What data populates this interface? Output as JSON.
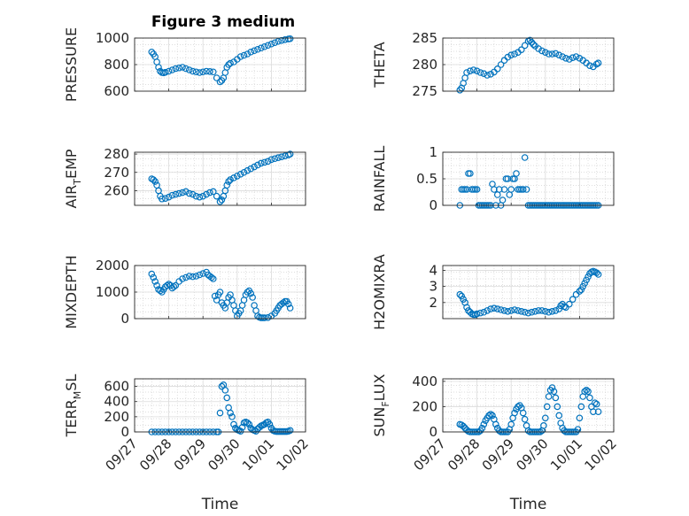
{
  "figure": {
    "title": "Figure 3 medium",
    "xlabel": "Time",
    "marker_color": "#0072BD",
    "x_ticks": [
      "09/27",
      "09/28",
      "09/29",
      "09/30",
      "10/01",
      "10/02"
    ]
  },
  "chart_data": [
    {
      "type": "scatter",
      "ylabel": "PRESSURE",
      "yticks": [
        "600",
        "800",
        "1000"
      ],
      "ylim": [
        600,
        1000
      ],
      "xlim": [
        0,
        5
      ],
      "grid": true,
      "x": [
        0.5,
        0.55,
        0.6,
        0.65,
        0.7,
        0.75,
        0.8,
        0.85,
        0.9,
        1.0,
        1.1,
        1.2,
        1.3,
        1.4,
        1.5,
        1.6,
        1.7,
        1.8,
        1.9,
        2.0,
        2.1,
        2.2,
        2.3,
        2.4,
        2.5,
        2.55,
        2.6,
        2.65,
        2.7,
        2.75,
        2.8,
        2.9,
        3.0,
        3.1,
        3.2,
        3.3,
        3.4,
        3.5,
        3.6,
        3.7,
        3.8,
        3.9,
        4.0,
        4.1,
        4.2,
        4.3,
        4.4,
        4.5,
        4.55
      ],
      "y": [
        895,
        880,
        860,
        820,
        780,
        750,
        740,
        738,
        742,
        750,
        760,
        770,
        775,
        780,
        770,
        760,
        750,
        745,
        740,
        745,
        750,
        748,
        745,
        700,
        670,
        680,
        700,
        740,
        780,
        800,
        810,
        820,
        840,
        860,
        870,
        880,
        895,
        905,
        915,
        925,
        935,
        945,
        955,
        965,
        975,
        982,
        988,
        993,
        995
      ]
    },
    {
      "type": "scatter",
      "ylabel": "THETA",
      "yticks": [
        "275",
        "280",
        "285"
      ],
      "ylim": [
        275,
        285
      ],
      "xlim": [
        0,
        5
      ],
      "grid": true,
      "x": [
        0.5,
        0.55,
        0.6,
        0.65,
        0.7,
        0.8,
        0.9,
        1.0,
        1.1,
        1.2,
        1.3,
        1.4,
        1.5,
        1.6,
        1.7,
        1.8,
        1.9,
        2.0,
        2.1,
        2.2,
        2.3,
        2.4,
        2.5,
        2.55,
        2.6,
        2.65,
        2.7,
        2.8,
        2.9,
        3.0,
        3.1,
        3.2,
        3.3,
        3.4,
        3.5,
        3.6,
        3.7,
        3.8,
        3.9,
        4.0,
        4.1,
        4.2,
        4.3,
        4.4,
        4.5,
        4.55
      ],
      "y": [
        275.2,
        275.6,
        276.5,
        277.5,
        278.5,
        278.8,
        279.0,
        278.8,
        278.5,
        278.3,
        278.0,
        278.2,
        278.6,
        279.2,
        280.0,
        280.8,
        281.4,
        281.8,
        282.0,
        282.3,
        282.8,
        283.6,
        284.4,
        284.6,
        284.2,
        283.8,
        283.5,
        283.0,
        282.6,
        282.3,
        282.0,
        282.0,
        282.1,
        281.8,
        281.5,
        281.2,
        281.0,
        281.3,
        281.5,
        281.2,
        280.8,
        280.3,
        279.8,
        279.6,
        280.1,
        280.3
      ]
    },
    {
      "type": "scatter",
      "ylabel": "AIR_TEMP",
      "ylabel_main": "AIR",
      "ylabel_sub": "T",
      "ylabel_rest": "EMP",
      "yticks": [
        "260",
        "270",
        "280"
      ],
      "ylim": [
        252,
        281
      ],
      "xlim": [
        0,
        5
      ],
      "grid": true,
      "x": [
        0.5,
        0.55,
        0.6,
        0.65,
        0.7,
        0.75,
        0.8,
        0.9,
        1.0,
        1.1,
        1.2,
        1.3,
        1.4,
        1.5,
        1.6,
        1.7,
        1.8,
        1.9,
        2.0,
        2.1,
        2.2,
        2.3,
        2.4,
        2.5,
        2.55,
        2.6,
        2.65,
        2.7,
        2.75,
        2.8,
        2.9,
        3.0,
        3.1,
        3.2,
        3.3,
        3.4,
        3.5,
        3.6,
        3.7,
        3.8,
        3.9,
        4.0,
        4.1,
        4.2,
        4.3,
        4.4,
        4.5,
        4.55
      ],
      "y": [
        266.5,
        266,
        265,
        263,
        260,
        257,
        255.5,
        255.8,
        256.5,
        257.5,
        258,
        258.5,
        259,
        259.5,
        258.5,
        258,
        257,
        256.5,
        257,
        258,
        259,
        259.5,
        257,
        254,
        255,
        257,
        260,
        263,
        265,
        266,
        267,
        268,
        269,
        270,
        271,
        272,
        273,
        274,
        275,
        275.5,
        276,
        277,
        277.5,
        278,
        278.5,
        279,
        279.5,
        280
      ]
    },
    {
      "type": "scatter",
      "ylabel": "RAINFALL",
      "yticks": [
        "0",
        "0.5",
        "1"
      ],
      "ylim": [
        0,
        1
      ],
      "xlim": [
        0,
        5
      ],
      "grid": true,
      "x": [
        0.5,
        0.55,
        0.6,
        0.65,
        0.7,
        0.75,
        0.8,
        0.85,
        0.9,
        0.95,
        1.0,
        1.05,
        1.1,
        1.15,
        1.2,
        1.25,
        1.3,
        1.35,
        1.4,
        1.45,
        1.5,
        1.55,
        1.6,
        1.65,
        1.7,
        1.75,
        1.8,
        1.85,
        1.9,
        1.95,
        2.0,
        2.05,
        2.1,
        2.15,
        2.2,
        2.25,
        2.3,
        2.35,
        2.4,
        2.45,
        2.5,
        2.55,
        2.6,
        2.65,
        2.7,
        2.75,
        2.8,
        2.85,
        2.9,
        2.95,
        3.0,
        3.05,
        3.1,
        3.15,
        3.2,
        3.25,
        3.3,
        3.35,
        3.4,
        3.45,
        3.5,
        3.55,
        3.6,
        3.65,
        3.7,
        3.75,
        3.8,
        3.85,
        3.9,
        3.95,
        4.0,
        4.05,
        4.1,
        4.15,
        4.2,
        4.25,
        4.3,
        4.35,
        4.4,
        4.45,
        4.5,
        4.55
      ],
      "y": [
        0,
        0.3,
        0.3,
        0.3,
        0.3,
        0.6,
        0.6,
        0.3,
        0.3,
        0.3,
        0.3,
        0,
        0,
        0,
        0,
        0,
        0,
        0,
        0,
        0.4,
        0.3,
        0,
        0.2,
        0.3,
        0,
        0.1,
        0.3,
        0.5,
        0.5,
        0.2,
        0.3,
        0.5,
        0.5,
        0.6,
        0.3,
        0.3,
        0.3,
        0.3,
        0.9,
        0.3,
        0,
        0,
        0,
        0,
        0,
        0,
        0,
        0,
        0,
        0,
        0,
        0,
        0,
        0,
        0,
        0,
        0,
        0,
        0,
        0,
        0,
        0,
        0,
        0,
        0,
        0,
        0,
        0,
        0,
        0,
        0,
        0,
        0,
        0,
        0,
        0,
        0,
        0,
        0,
        0,
        0,
        0
      ]
    },
    {
      "type": "scatter",
      "ylabel": "MIXDEPTH",
      "yticks": [
        "0",
        "1000",
        "2000"
      ],
      "ylim": [
        0,
        2000
      ],
      "xlim": [
        0,
        5
      ],
      "grid": true,
      "x": [
        0.5,
        0.55,
        0.6,
        0.65,
        0.7,
        0.75,
        0.8,
        0.85,
        0.9,
        0.95,
        1.0,
        1.05,
        1.1,
        1.15,
        1.2,
        1.3,
        1.4,
        1.5,
        1.6,
        1.7,
        1.8,
        1.9,
        2.0,
        2.1,
        2.15,
        2.2,
        2.25,
        2.3,
        2.35,
        2.4,
        2.45,
        2.5,
        2.55,
        2.6,
        2.65,
        2.7,
        2.75,
        2.8,
        2.85,
        2.9,
        2.95,
        3.0,
        3.05,
        3.1,
        3.15,
        3.2,
        3.25,
        3.3,
        3.35,
        3.4,
        3.45,
        3.5,
        3.55,
        3.6,
        3.65,
        3.7,
        3.75,
        3.8,
        3.9,
        4.0,
        4.1,
        4.15,
        4.2,
        4.25,
        4.3,
        4.35,
        4.4,
        4.45,
        4.5,
        4.55
      ],
      "y": [
        1680,
        1550,
        1400,
        1250,
        1100,
        1050,
        1000,
        1100,
        1200,
        1250,
        1300,
        1250,
        1150,
        1200,
        1250,
        1400,
        1500,
        1550,
        1600,
        1580,
        1600,
        1650,
        1700,
        1750,
        1650,
        1600,
        1550,
        1500,
        850,
        700,
        900,
        1000,
        600,
        500,
        400,
        600,
        800,
        900,
        700,
        500,
        300,
        100,
        200,
        300,
        500,
        700,
        900,
        1000,
        1050,
        950,
        800,
        500,
        300,
        100,
        50,
        30,
        30,
        30,
        40,
        100,
        200,
        300,
        400,
        500,
        550,
        600,
        650,
        650,
        550,
        400
      ]
    },
    {
      "type": "scatter",
      "ylabel": "H2OMIXRA",
      "yticks": [
        "2",
        "3",
        "4"
      ],
      "ylim": [
        1,
        4.3
      ],
      "xlim": [
        0,
        5
      ],
      "grid": true,
      "x": [
        0.5,
        0.55,
        0.6,
        0.65,
        0.7,
        0.75,
        0.8,
        0.85,
        0.9,
        0.95,
        1.0,
        1.1,
        1.2,
        1.3,
        1.4,
        1.5,
        1.6,
        1.7,
        1.8,
        1.9,
        2.0,
        2.1,
        2.2,
        2.3,
        2.4,
        2.5,
        2.6,
        2.7,
        2.8,
        2.9,
        3.0,
        3.1,
        3.2,
        3.3,
        3.4,
        3.45,
        3.5,
        3.55,
        3.6,
        3.7,
        3.8,
        3.9,
        4.0,
        4.05,
        4.1,
        4.15,
        4.2,
        4.25,
        4.3,
        4.35,
        4.4,
        4.45,
        4.5,
        4.55
      ],
      "y": [
        2.5,
        2.4,
        2.2,
        2.0,
        1.7,
        1.5,
        1.4,
        1.3,
        1.25,
        1.25,
        1.3,
        1.35,
        1.4,
        1.5,
        1.6,
        1.65,
        1.6,
        1.55,
        1.5,
        1.45,
        1.5,
        1.55,
        1.5,
        1.45,
        1.4,
        1.35,
        1.4,
        1.45,
        1.5,
        1.5,
        1.45,
        1.4,
        1.45,
        1.5,
        1.6,
        1.8,
        1.9,
        1.75,
        1.7,
        1.9,
        2.2,
        2.5,
        2.7,
        2.8,
        3.0,
        3.2,
        3.4,
        3.6,
        3.8,
        3.9,
        3.95,
        3.9,
        3.85,
        3.75
      ]
    },
    {
      "type": "scatter",
      "ylabel": "TERR_MSL",
      "ylabel_main": "TERR",
      "ylabel_sub": "M",
      "ylabel_rest": "SL",
      "yticks": [
        "0",
        "200",
        "400",
        "600"
      ],
      "ylim": [
        0,
        700
      ],
      "xlim": [
        0,
        5
      ],
      "grid": true,
      "x": [
        0.5,
        0.6,
        0.7,
        0.8,
        0.9,
        1.0,
        1.1,
        1.2,
        1.3,
        1.4,
        1.5,
        1.6,
        1.7,
        1.8,
        1.9,
        2.0,
        2.1,
        2.2,
        2.3,
        2.4,
        2.45,
        2.5,
        2.55,
        2.6,
        2.65,
        2.7,
        2.75,
        2.8,
        2.85,
        2.9,
        2.95,
        3.0,
        3.05,
        3.1,
        3.15,
        3.2,
        3.25,
        3.3,
        3.35,
        3.4,
        3.45,
        3.5,
        3.55,
        3.6,
        3.65,
        3.7,
        3.75,
        3.8,
        3.85,
        3.9,
        3.95,
        4.0,
        4.05,
        4.1,
        4.15,
        4.2,
        4.25,
        4.3,
        4.35,
        4.4,
        4.45,
        4.5,
        4.55
      ],
      "y": [
        0,
        0,
        0,
        0,
        0,
        0,
        0,
        0,
        0,
        0,
        0,
        0,
        0,
        0,
        0,
        0,
        0,
        0,
        0,
        0,
        0,
        250,
        600,
        620,
        550,
        450,
        320,
        250,
        200,
        100,
        50,
        30,
        20,
        10,
        60,
        120,
        130,
        120,
        100,
        50,
        30,
        20,
        10,
        40,
        60,
        80,
        90,
        100,
        120,
        130,
        100,
        50,
        20,
        10,
        5,
        5,
        5,
        5,
        5,
        5,
        5,
        10,
        20
      ]
    },
    {
      "type": "scatter",
      "ylabel": "SUN_FLUX",
      "ylabel_main": "SUN",
      "ylabel_sub": "F",
      "ylabel_rest": "LUX",
      "yticks": [
        "0",
        "200",
        "400"
      ],
      "ylim": [
        0,
        420
      ],
      "xlim": [
        0,
        5
      ],
      "grid": true,
      "x": [
        0.5,
        0.55,
        0.6,
        0.65,
        0.7,
        0.75,
        0.8,
        0.85,
        0.9,
        0.95,
        1.0,
        1.05,
        1.1,
        1.15,
        1.2,
        1.25,
        1.3,
        1.35,
        1.4,
        1.45,
        1.5,
        1.55,
        1.6,
        1.65,
        1.7,
        1.75,
        1.8,
        1.85,
        1.9,
        1.95,
        2.0,
        2.05,
        2.1,
        2.15,
        2.2,
        2.25,
        2.3,
        2.35,
        2.4,
        2.45,
        2.5,
        2.55,
        2.6,
        2.65,
        2.7,
        2.75,
        2.8,
        2.85,
        2.9,
        2.95,
        3.0,
        3.05,
        3.1,
        3.15,
        3.2,
        3.25,
        3.3,
        3.35,
        3.4,
        3.45,
        3.5,
        3.55,
        3.6,
        3.65,
        3.7,
        3.75,
        3.8,
        3.85,
        3.9,
        3.95,
        4.0,
        4.05,
        4.1,
        4.15,
        4.2,
        4.25,
        4.3,
        4.35,
        4.4,
        4.45,
        4.5,
        4.55
      ],
      "y": [
        60,
        55,
        45,
        30,
        15,
        5,
        0,
        0,
        0,
        0,
        0,
        0,
        10,
        30,
        60,
        90,
        110,
        130,
        140,
        130,
        100,
        60,
        30,
        10,
        0,
        0,
        0,
        0,
        0,
        20,
        60,
        110,
        150,
        180,
        200,
        210,
        190,
        150,
        100,
        50,
        10,
        0,
        0,
        0,
        0,
        0,
        0,
        0,
        10,
        50,
        110,
        200,
        280,
        330,
        350,
        320,
        270,
        200,
        130,
        70,
        30,
        10,
        0,
        0,
        0,
        0,
        0,
        0,
        0,
        20,
        110,
        200,
        280,
        320,
        330,
        320,
        270,
        200,
        160,
        230,
        220,
        160
      ]
    }
  ]
}
